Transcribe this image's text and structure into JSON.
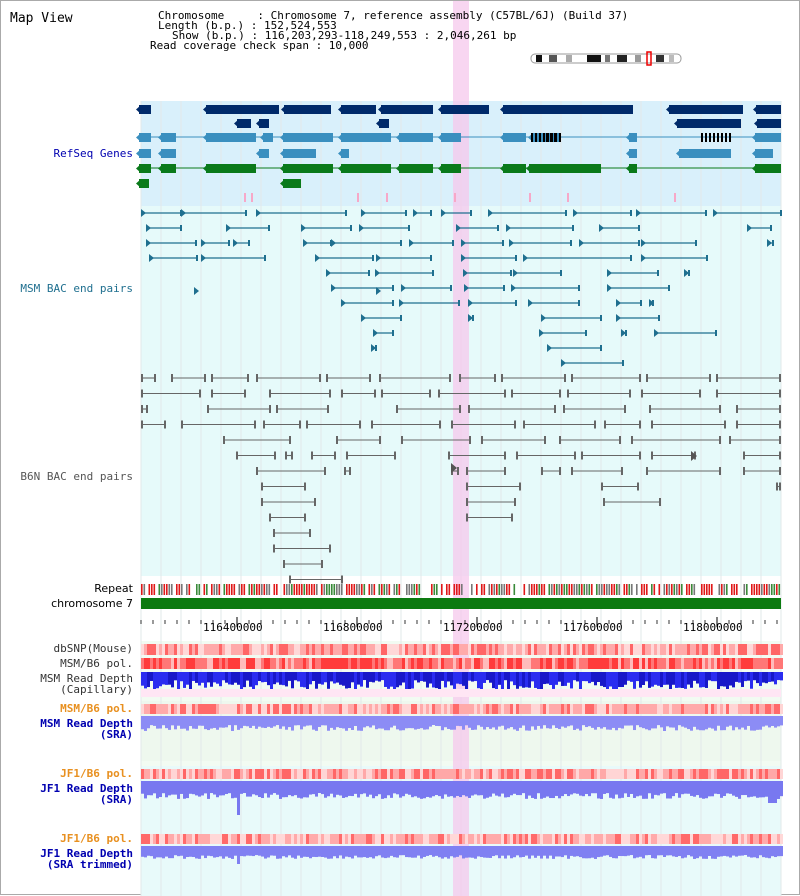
{
  "header": {
    "title": "Map View",
    "lines": [
      "Chromosome     : Chromosome 7, reference assembly (C57BL/6J) (Build 37)",
      "Length (b.p.) : 152,524,553",
      "Show (b.p.) : 116,203,293-118,249,553 : 2,046,261 bp",
      "Read coverage check span : 10,000"
    ]
  },
  "tracks": {
    "refseq": "RefSeq Genes",
    "msm_bac": "MSM BAC end pairs",
    "b6n_bac": "B6N BAC end pairs",
    "repeat": "Repeat",
    "chromosome": "chromosome 7",
    "dbsnp": "dbSNP(Mouse)",
    "msm_b6_pol": "MSM/B6 pol.",
    "msm_depth_cap_1": "MSM Read Depth",
    "msm_depth_cap_2": "(Capillary)",
    "msm_b6_pol2": "MSM/B6 pol.",
    "msm_depth_sra_1": "MSM Read Depth",
    "msm_depth_sra_2": "(SRA)",
    "jf1_b6_pol": "JF1/B6 pol.",
    "jf1_depth_sra_1": "JF1 Read Depth",
    "jf1_depth_sra_2": "(SRA)",
    "jf1_b6_pol2": "JF1/B6 pol.",
    "jf1_depth_trim_1": "JF1 Read Depth",
    "jf1_depth_trim_2": "(SRA trimmed)"
  },
  "axis": {
    "ticks": [
      "116400000",
      "116800000",
      "117200000",
      "117600000",
      "118000000"
    ]
  },
  "colors": {
    "refseq_bg": "#d9f0fb",
    "bac_bg": "#e6fafa",
    "gene_dark": "#002a6a",
    "gene_mid": "#3a8fbf",
    "gene_green": "#0a7a1a",
    "msm_bac": "#1f6f8f",
    "b6n_bac": "#666666",
    "chromosome": "#0c7a10",
    "highlight": "#f5c8ec",
    "depth_blue": "#2a2cf0",
    "depth_light": "#8c8cf5",
    "label_blue": "#0000b0",
    "label_orange": "#e89020"
  }
}
